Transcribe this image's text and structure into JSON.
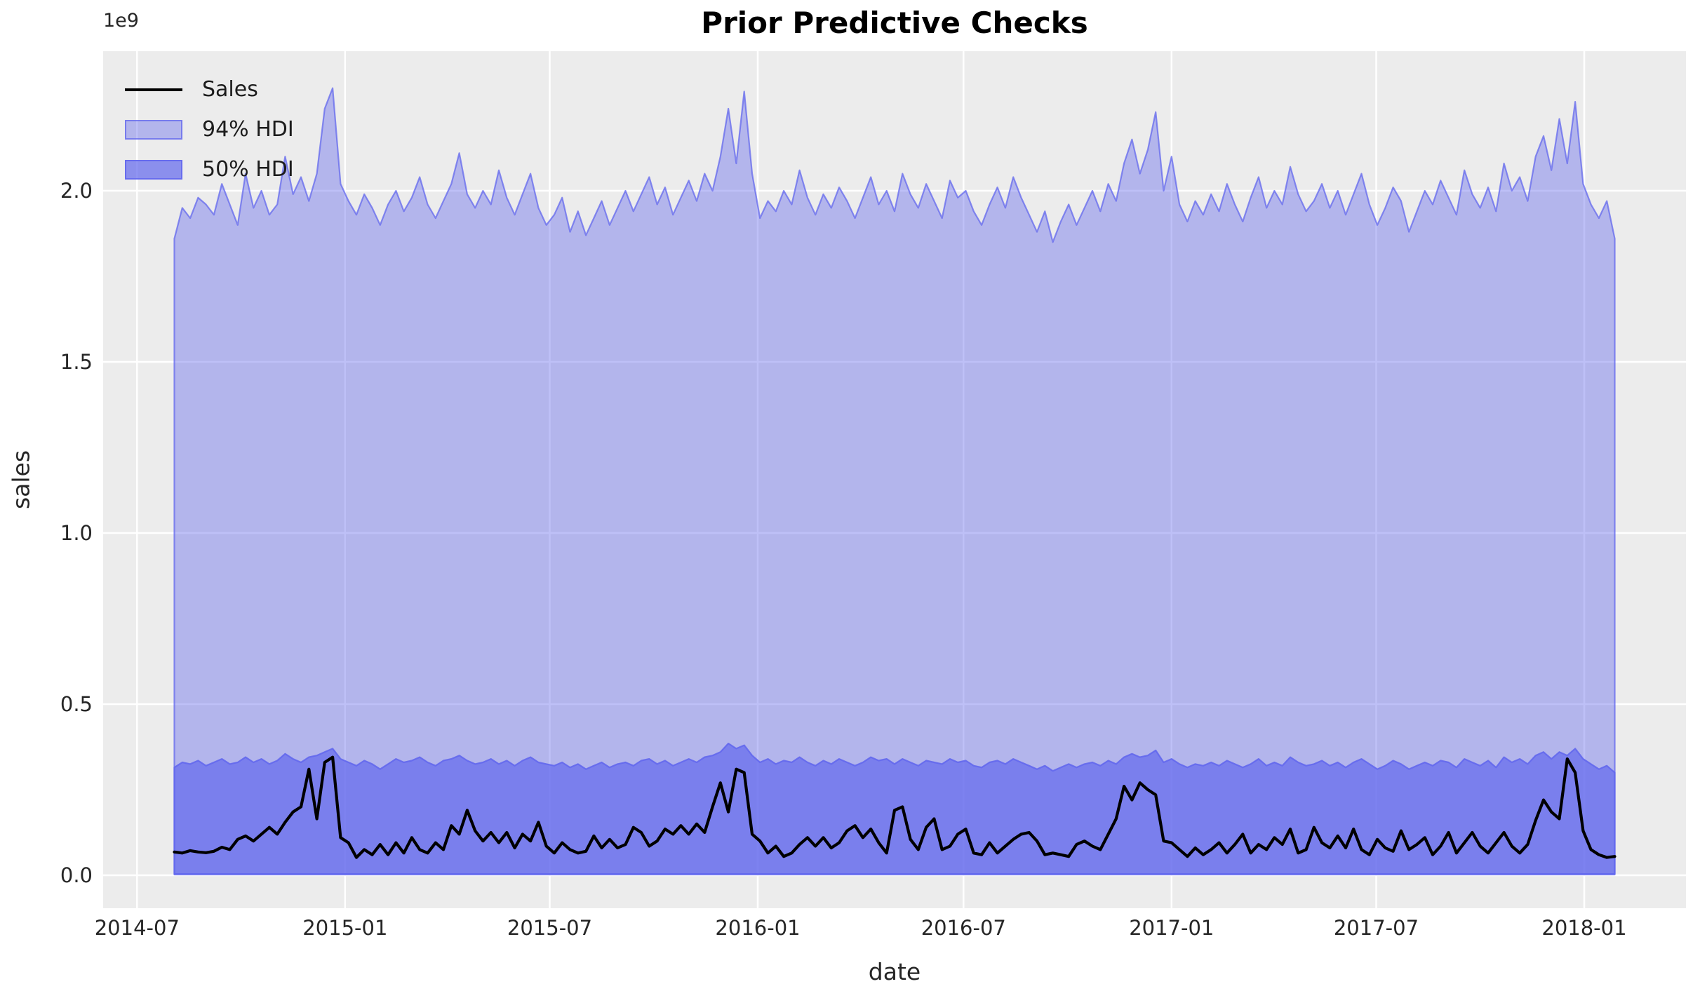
{
  "title": "Prior Predictive Checks",
  "axes": {
    "xlabel": "date",
    "ylabel": "sales",
    "offset_text": "1e9",
    "x_tick_labels": [
      "2014-07",
      "2015-01",
      "2015-07",
      "2016-01",
      "2016-07",
      "2017-01",
      "2017-07",
      "2018-01"
    ],
    "y_tick_labels": [
      "0.0",
      "0.5",
      "1.0",
      "1.5",
      "2.0"
    ]
  },
  "legend": {
    "position": "upper left",
    "items": [
      {
        "label": "Sales",
        "type": "line",
        "color": "#000000"
      },
      {
        "label": "94% HDI",
        "type": "patch",
        "fill": "rgba(99,104,237,0.42)",
        "edge": "rgba(99,104,237,0.75)"
      },
      {
        "label": "50% HDI",
        "type": "patch",
        "fill": "rgba(99,104,237,0.71)",
        "edge": "rgba(99,104,237,0.9)"
      }
    ]
  },
  "colors": {
    "figure_background": "#ffffff",
    "axes_background": "#ececec",
    "gridline": "#ffffff",
    "band_base": "#6368ED",
    "hdi94_fill": "rgba(99,104,237,0.42)",
    "hdi94_edge": "rgba(99,104,237,0.75)",
    "hdi50_fill": "rgba(99,104,237,0.71)",
    "hdi50_edge": "rgba(99,104,237,0.9)",
    "sales_line": "#000000",
    "text": "#262626"
  },
  "chart_data": {
    "type": "area",
    "title": "Prior Predictive Checks",
    "xlabel": "date",
    "ylabel": "sales",
    "y_scale_factor": 1000000000,
    "grid": true,
    "legend_position": "upper left",
    "xlim": [
      "2014-06-01",
      "2018-04-01"
    ],
    "ylim": [
      -0.0963,
      2.4078
    ],
    "x_tick_dates": [
      "2014-07-01",
      "2015-01-01",
      "2015-07-01",
      "2016-01-01",
      "2016-07-01",
      "2017-01-01",
      "2017-07-01",
      "2018-01-01"
    ],
    "x_tick_labels": [
      "2014-07",
      "2015-01",
      "2015-07",
      "2016-01",
      "2016-07",
      "2017-01",
      "2017-07",
      "2018-01"
    ],
    "y_tick_values": [
      0.0,
      0.5,
      1.0,
      1.5,
      2.0
    ],
    "x_start_date": "2014-08-03",
    "x_interval_days": 7,
    "series": [
      {
        "name": "Sales",
        "type": "line",
        "values": [
          0.068,
          0.065,
          0.072,
          0.068,
          0.066,
          0.07,
          0.082,
          0.075,
          0.105,
          0.115,
          0.1,
          0.12,
          0.14,
          0.12,
          0.155,
          0.185,
          0.2,
          0.31,
          0.165,
          0.33,
          0.345,
          0.11,
          0.095,
          0.052,
          0.075,
          0.06,
          0.09,
          0.06,
          0.095,
          0.065,
          0.11,
          0.075,
          0.065,
          0.095,
          0.075,
          0.145,
          0.12,
          0.19,
          0.13,
          0.1,
          0.125,
          0.095,
          0.125,
          0.08,
          0.12,
          0.1,
          0.155,
          0.085,
          0.065,
          0.095,
          0.075,
          0.065,
          0.07,
          0.115,
          0.08,
          0.105,
          0.08,
          0.09,
          0.14,
          0.125,
          0.085,
          0.1,
          0.135,
          0.12,
          0.145,
          0.12,
          0.15,
          0.125,
          0.2,
          0.27,
          0.185,
          0.31,
          0.3,
          0.12,
          0.1,
          0.065,
          0.085,
          0.055,
          0.065,
          0.09,
          0.11,
          0.085,
          0.11,
          0.08,
          0.095,
          0.13,
          0.145,
          0.11,
          0.135,
          0.095,
          0.065,
          0.19,
          0.2,
          0.105,
          0.075,
          0.14,
          0.165,
          0.075,
          0.085,
          0.12,
          0.135,
          0.065,
          0.06,
          0.095,
          0.065,
          0.085,
          0.105,
          0.12,
          0.125,
          0.1,
          0.06,
          0.065,
          0.06,
          0.055,
          0.09,
          0.1,
          0.085,
          0.075,
          0.12,
          0.165,
          0.26,
          0.22,
          0.27,
          0.25,
          0.235,
          0.1,
          0.095,
          0.075,
          0.055,
          0.08,
          0.06,
          0.075,
          0.095,
          0.065,
          0.09,
          0.12,
          0.065,
          0.09,
          0.075,
          0.11,
          0.09,
          0.135,
          0.065,
          0.075,
          0.14,
          0.095,
          0.08,
          0.115,
          0.08,
          0.135,
          0.075,
          0.06,
          0.105,
          0.08,
          0.07,
          0.13,
          0.075,
          0.09,
          0.11,
          0.06,
          0.085,
          0.125,
          0.065,
          0.095,
          0.125,
          0.085,
          0.065,
          0.095,
          0.125,
          0.085,
          0.065,
          0.09,
          0.16,
          0.22,
          0.185,
          0.165,
          0.34,
          0.3,
          0.13,
          0.075,
          0.06,
          0.052,
          0.055
        ]
      },
      {
        "name": "94% HDI",
        "type": "band",
        "lower_constant": 0.002,
        "upper": [
          1.86,
          1.95,
          1.92,
          1.98,
          1.96,
          1.93,
          2.02,
          1.96,
          1.9,
          2.05,
          1.95,
          2.0,
          1.93,
          1.96,
          2.1,
          1.99,
          2.04,
          1.97,
          2.05,
          2.24,
          2.3,
          2.02,
          1.97,
          1.93,
          1.99,
          1.95,
          1.9,
          1.96,
          2.0,
          1.94,
          1.98,
          2.04,
          1.96,
          1.92,
          1.97,
          2.02,
          2.11,
          1.99,
          1.95,
          2.0,
          1.96,
          2.06,
          1.98,
          1.93,
          1.99,
          2.05,
          1.95,
          1.9,
          1.93,
          1.98,
          1.88,
          1.94,
          1.87,
          1.92,
          1.97,
          1.9,
          1.95,
          2.0,
          1.94,
          1.99,
          2.04,
          1.96,
          2.01,
          1.93,
          1.98,
          2.03,
          1.97,
          2.05,
          2.0,
          2.1,
          2.24,
          2.08,
          2.29,
          2.05,
          1.92,
          1.97,
          1.94,
          2.0,
          1.96,
          2.06,
          1.98,
          1.93,
          1.99,
          1.95,
          2.01,
          1.97,
          1.92,
          1.98,
          2.04,
          1.96,
          2.0,
          1.94,
          2.05,
          1.99,
          1.95,
          2.02,
          1.97,
          1.92,
          2.03,
          1.98,
          2.0,
          1.94,
          1.9,
          1.96,
          2.01,
          1.95,
          2.04,
          1.98,
          1.93,
          1.88,
          1.94,
          1.85,
          1.91,
          1.96,
          1.9,
          1.95,
          2.0,
          1.94,
          2.02,
          1.97,
          2.08,
          2.15,
          2.05,
          2.12,
          2.23,
          2.0,
          2.1,
          1.96,
          1.91,
          1.97,
          1.93,
          1.99,
          1.94,
          2.02,
          1.96,
          1.91,
          1.98,
          2.04,
          1.95,
          2.0,
          1.96,
          2.07,
          1.99,
          1.94,
          1.97,
          2.02,
          1.95,
          2.0,
          1.93,
          1.99,
          2.05,
          1.96,
          1.9,
          1.95,
          2.01,
          1.97,
          1.88,
          1.94,
          2.0,
          1.96,
          2.03,
          1.98,
          1.93,
          2.06,
          1.99,
          1.95,
          2.01,
          1.94,
          2.08,
          2.0,
          2.04,
          1.97,
          2.1,
          2.16,
          2.06,
          2.21,
          2.08,
          2.26,
          2.02,
          1.96,
          1.92,
          1.97,
          1.86
        ]
      },
      {
        "name": "50% HDI",
        "type": "band",
        "lower_constant": 0.004,
        "upper": [
          0.315,
          0.33,
          0.325,
          0.335,
          0.32,
          0.33,
          0.34,
          0.325,
          0.33,
          0.345,
          0.33,
          0.34,
          0.325,
          0.335,
          0.355,
          0.34,
          0.33,
          0.345,
          0.35,
          0.36,
          0.37,
          0.34,
          0.33,
          0.32,
          0.335,
          0.325,
          0.31,
          0.325,
          0.34,
          0.33,
          0.335,
          0.345,
          0.33,
          0.32,
          0.335,
          0.34,
          0.35,
          0.335,
          0.325,
          0.33,
          0.34,
          0.325,
          0.335,
          0.32,
          0.335,
          0.345,
          0.33,
          0.325,
          0.32,
          0.33,
          0.315,
          0.325,
          0.31,
          0.32,
          0.33,
          0.315,
          0.325,
          0.33,
          0.32,
          0.335,
          0.34,
          0.325,
          0.335,
          0.32,
          0.33,
          0.34,
          0.33,
          0.345,
          0.35,
          0.36,
          0.385,
          0.37,
          0.38,
          0.35,
          0.33,
          0.34,
          0.325,
          0.335,
          0.33,
          0.345,
          0.33,
          0.32,
          0.335,
          0.325,
          0.34,
          0.33,
          0.32,
          0.33,
          0.345,
          0.335,
          0.34,
          0.325,
          0.34,
          0.33,
          0.32,
          0.335,
          0.33,
          0.325,
          0.34,
          0.33,
          0.335,
          0.32,
          0.315,
          0.33,
          0.335,
          0.325,
          0.34,
          0.33,
          0.32,
          0.31,
          0.32,
          0.305,
          0.315,
          0.325,
          0.315,
          0.325,
          0.33,
          0.32,
          0.335,
          0.325,
          0.345,
          0.355,
          0.345,
          0.35,
          0.365,
          0.33,
          0.34,
          0.325,
          0.315,
          0.325,
          0.32,
          0.33,
          0.32,
          0.335,
          0.325,
          0.315,
          0.325,
          0.34,
          0.32,
          0.33,
          0.32,
          0.345,
          0.33,
          0.32,
          0.325,
          0.335,
          0.32,
          0.33,
          0.315,
          0.33,
          0.34,
          0.325,
          0.31,
          0.32,
          0.335,
          0.325,
          0.31,
          0.32,
          0.33,
          0.32,
          0.335,
          0.33,
          0.315,
          0.34,
          0.33,
          0.32,
          0.335,
          0.315,
          0.345,
          0.33,
          0.34,
          0.325,
          0.35,
          0.36,
          0.34,
          0.36,
          0.35,
          0.37,
          0.34,
          0.325,
          0.31,
          0.32,
          0.3
        ]
      }
    ]
  }
}
